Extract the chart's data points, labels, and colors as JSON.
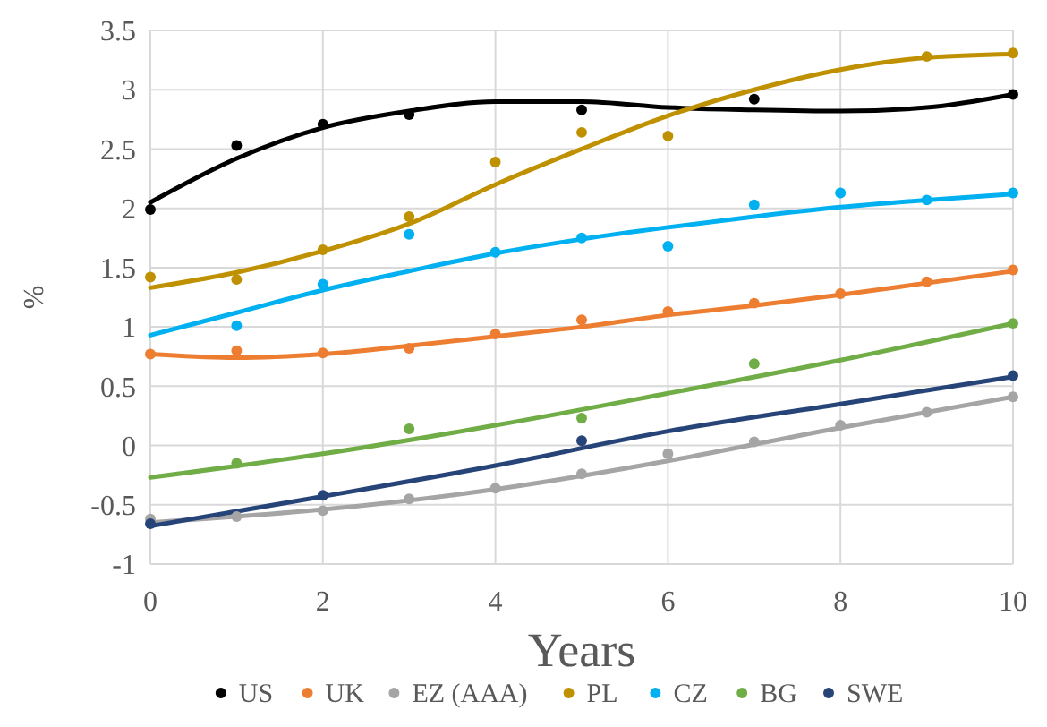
{
  "chart_data": {
    "type": "scatter",
    "xlabel": "Years",
    "ylabel": "%",
    "xlim": [
      0,
      10
    ],
    "ylim": [
      -1,
      3.5
    ],
    "xticks": [
      0,
      2,
      4,
      6,
      8,
      10
    ],
    "yticks": [
      -1,
      -0.5,
      0,
      0.5,
      1,
      1.5,
      2,
      2.5,
      3,
      3.5
    ],
    "grid": true,
    "legend": "bottom",
    "marker": "circle",
    "series": [
      {
        "name": "US",
        "color": "#000000",
        "x": [
          0,
          1,
          2,
          3,
          5,
          7,
          10
        ],
        "values": [
          1.99,
          2.53,
          2.71,
          2.79,
          2.83,
          2.92,
          2.96
        ]
      },
      {
        "name": "UK",
        "color": "#ed7d31",
        "x": [
          0,
          1,
          2,
          3,
          4,
          5,
          6,
          7,
          8,
          9,
          10
        ],
        "values": [
          0.77,
          0.8,
          0.78,
          0.82,
          0.94,
          1.06,
          1.13,
          1.2,
          1.28,
          1.38,
          1.48
        ]
      },
      {
        "name": "EZ (AAA)",
        "color": "#a5a5a5",
        "x": [
          0,
          1,
          2,
          3,
          4,
          5,
          6,
          7,
          8,
          9,
          10
        ],
        "values": [
          -0.62,
          -0.6,
          -0.55,
          -0.45,
          -0.36,
          -0.24,
          -0.07,
          0.03,
          0.17,
          0.28,
          0.41
        ]
      },
      {
        "name": "PL",
        "color": "#bf9000",
        "x": [
          0,
          1,
          2,
          3,
          4,
          5,
          6,
          9,
          10
        ],
        "values": [
          1.42,
          1.4,
          1.65,
          1.93,
          2.39,
          2.64,
          2.61,
          3.28,
          3.31
        ]
      },
      {
        "name": "CZ",
        "color": "#00b0f0",
        "x": [
          1,
          2,
          3,
          4,
          5,
          6,
          7,
          8,
          9,
          10
        ],
        "values": [
          1.01,
          1.36,
          1.78,
          1.63,
          1.75,
          1.68,
          2.03,
          2.13,
          2.07,
          2.13
        ]
      },
      {
        "name": "BG",
        "color": "#70ad47",
        "x": [
          1,
          3,
          5,
          7,
          10
        ],
        "values": [
          -0.15,
          0.14,
          0.23,
          0.69,
          1.03
        ]
      },
      {
        "name": "SWE",
        "color": "#264478",
        "x": [
          0,
          2,
          5,
          10
        ],
        "values": [
          -0.66,
          -0.42,
          0.04,
          0.59
        ]
      },
      {
        "type": "line",
        "marker": "none",
        "color": "#000000",
        "x": [
          0,
          1,
          2,
          3,
          4,
          5,
          6,
          7,
          8,
          9,
          10
        ],
        "values": [
          2.05,
          2.42,
          2.68,
          2.82,
          2.9,
          2.9,
          2.85,
          2.83,
          2.82,
          2.85,
          2.96
        ]
      },
      {
        "type": "line",
        "marker": "none",
        "color": "#ed7d31",
        "x": [
          0,
          1,
          2,
          3,
          4,
          5,
          6,
          7,
          8,
          9,
          10
        ],
        "values": [
          0.77,
          0.74,
          0.77,
          0.84,
          0.92,
          1.0,
          1.1,
          1.18,
          1.27,
          1.37,
          1.47
        ]
      },
      {
        "type": "line",
        "marker": "none",
        "color": "#a5a5a5",
        "x": [
          0,
          2,
          4,
          6,
          8,
          10
        ],
        "values": [
          -0.65,
          -0.54,
          -0.37,
          -0.13,
          0.15,
          0.41
        ]
      },
      {
        "type": "line",
        "marker": "none",
        "color": "#bf9000",
        "x": [
          0,
          1,
          2,
          3,
          4,
          5,
          6,
          7,
          8,
          9,
          10
        ],
        "values": [
          1.33,
          1.46,
          1.64,
          1.87,
          2.2,
          2.5,
          2.78,
          3.0,
          3.17,
          3.27,
          3.3
        ]
      },
      {
        "type": "line",
        "marker": "none",
        "color": "#00b0f0",
        "x": [
          0,
          1,
          2,
          3,
          4,
          5,
          6,
          7,
          8,
          9,
          10
        ],
        "values": [
          0.93,
          1.12,
          1.31,
          1.47,
          1.62,
          1.74,
          1.84,
          1.93,
          2.01,
          2.07,
          2.12
        ]
      },
      {
        "type": "line",
        "marker": "none",
        "color": "#70ad47",
        "x": [
          0,
          2,
          4,
          6,
          8,
          10
        ],
        "values": [
          -0.27,
          -0.07,
          0.17,
          0.44,
          0.72,
          1.03
        ]
      },
      {
        "type": "line",
        "marker": "none",
        "color": "#264478",
        "x": [
          0,
          2,
          4,
          6,
          8,
          10
        ],
        "values": [
          -0.68,
          -0.43,
          -0.17,
          0.12,
          0.35,
          0.58
        ]
      }
    ]
  }
}
